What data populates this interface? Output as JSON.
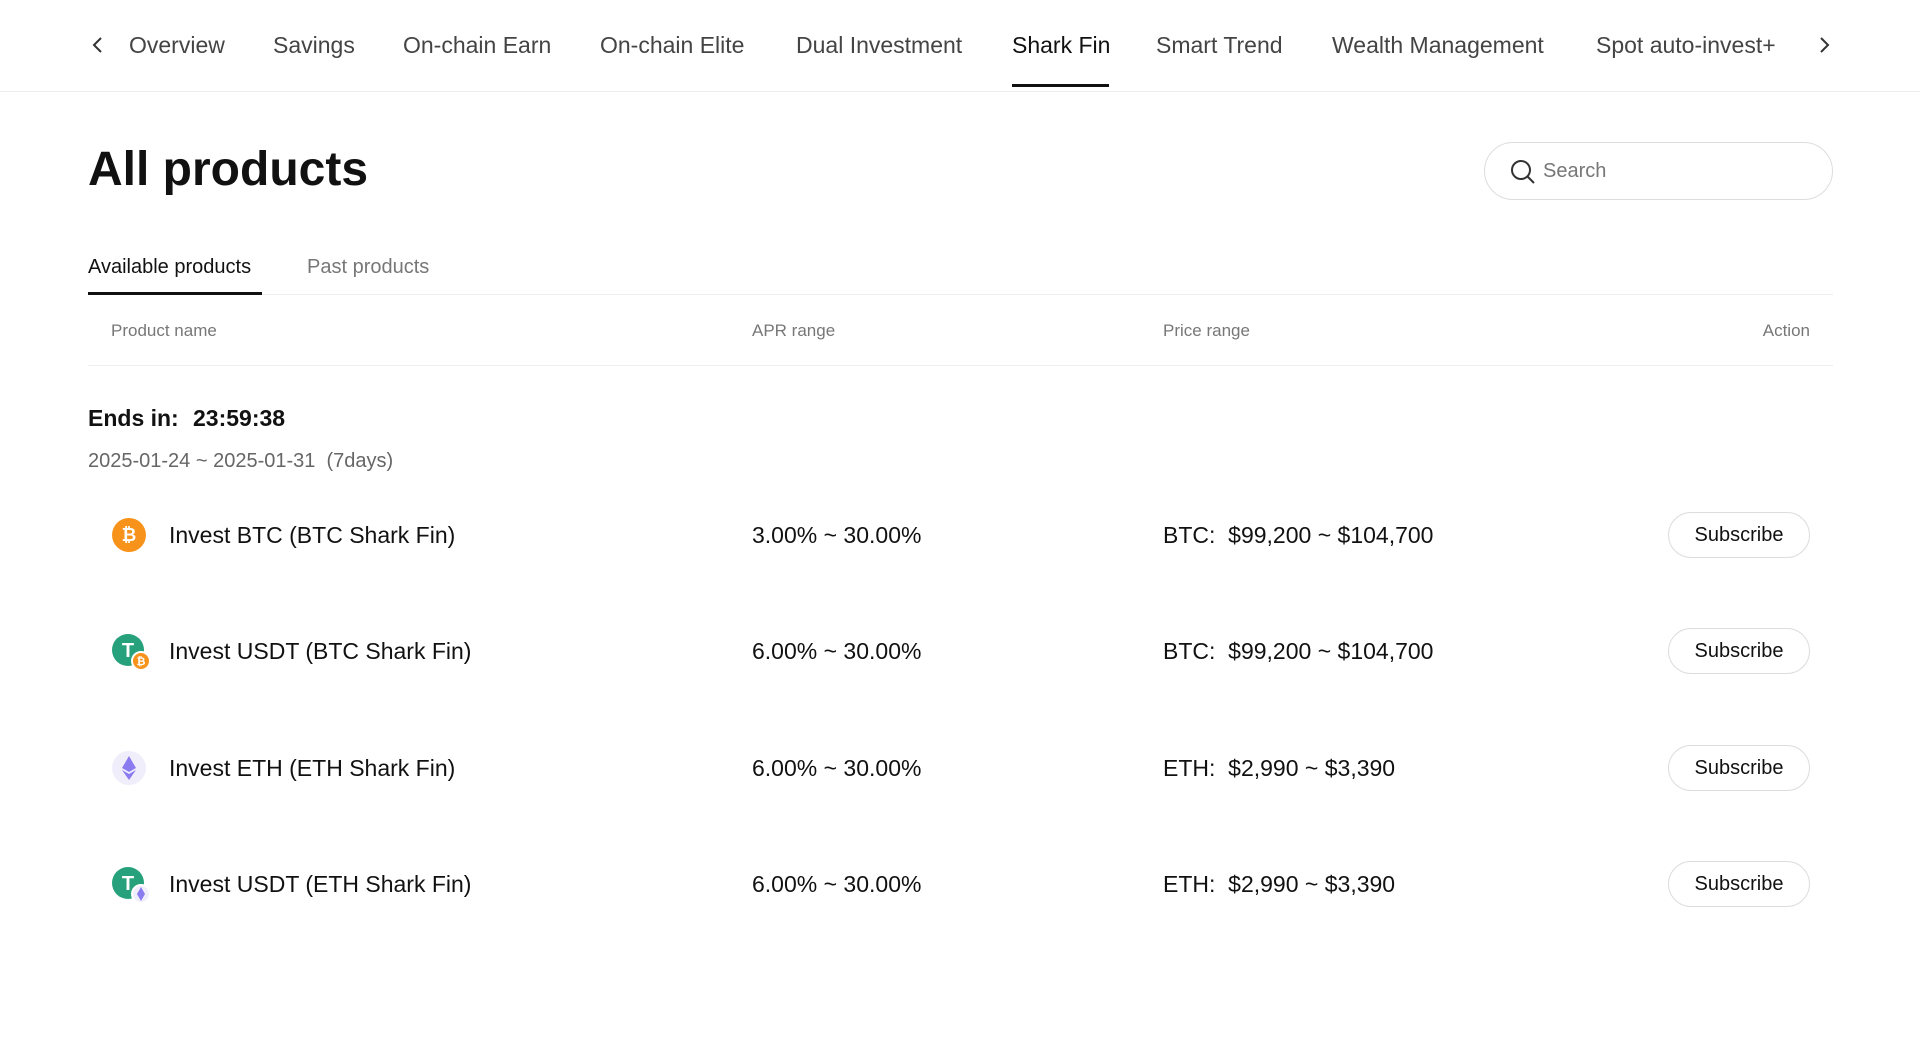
{
  "nav": {
    "items": [
      "Overview",
      "Savings",
      "On-chain Earn",
      "On-chain Elite",
      "Dual Investment",
      "Shark Fin",
      "Smart Trend",
      "Wealth Management",
      "Spot auto-invest+"
    ],
    "active": 5
  },
  "header": {
    "title": "All products",
    "search_placeholder": "Search"
  },
  "tabs": [
    "Available products",
    "Past products"
  ],
  "table": {
    "headers": [
      "Product name",
      "APR range",
      "Price range",
      "Action"
    ],
    "group": {
      "ends_label": "Ends in:",
      "countdown": "23:59:38",
      "period": "2025-01-24 ~ 2025-01-31  (7days)"
    },
    "rows": [
      [
        "Invest BTC (BTC Shark Fin)",
        "3.00% ~ 30.00%",
        "BTC:  $99,200 ~ $104,700",
        "Subscribe"
      ],
      [
        "Invest USDT (BTC Shark Fin)",
        "6.00% ~ 30.00%",
        "BTC:  $99,200 ~ $104,700",
        "Subscribe"
      ],
      [
        "Invest ETH (ETH Shark Fin)",
        "6.00% ~ 30.00%",
        "ETH:  $2,990 ~ $3,390",
        "Subscribe"
      ],
      [
        "Invest USDT (ETH Shark Fin)",
        "6.00% ~ 30.00%",
        "ETH:  $2,990 ~ $3,390",
        "Subscribe"
      ]
    ]
  }
}
